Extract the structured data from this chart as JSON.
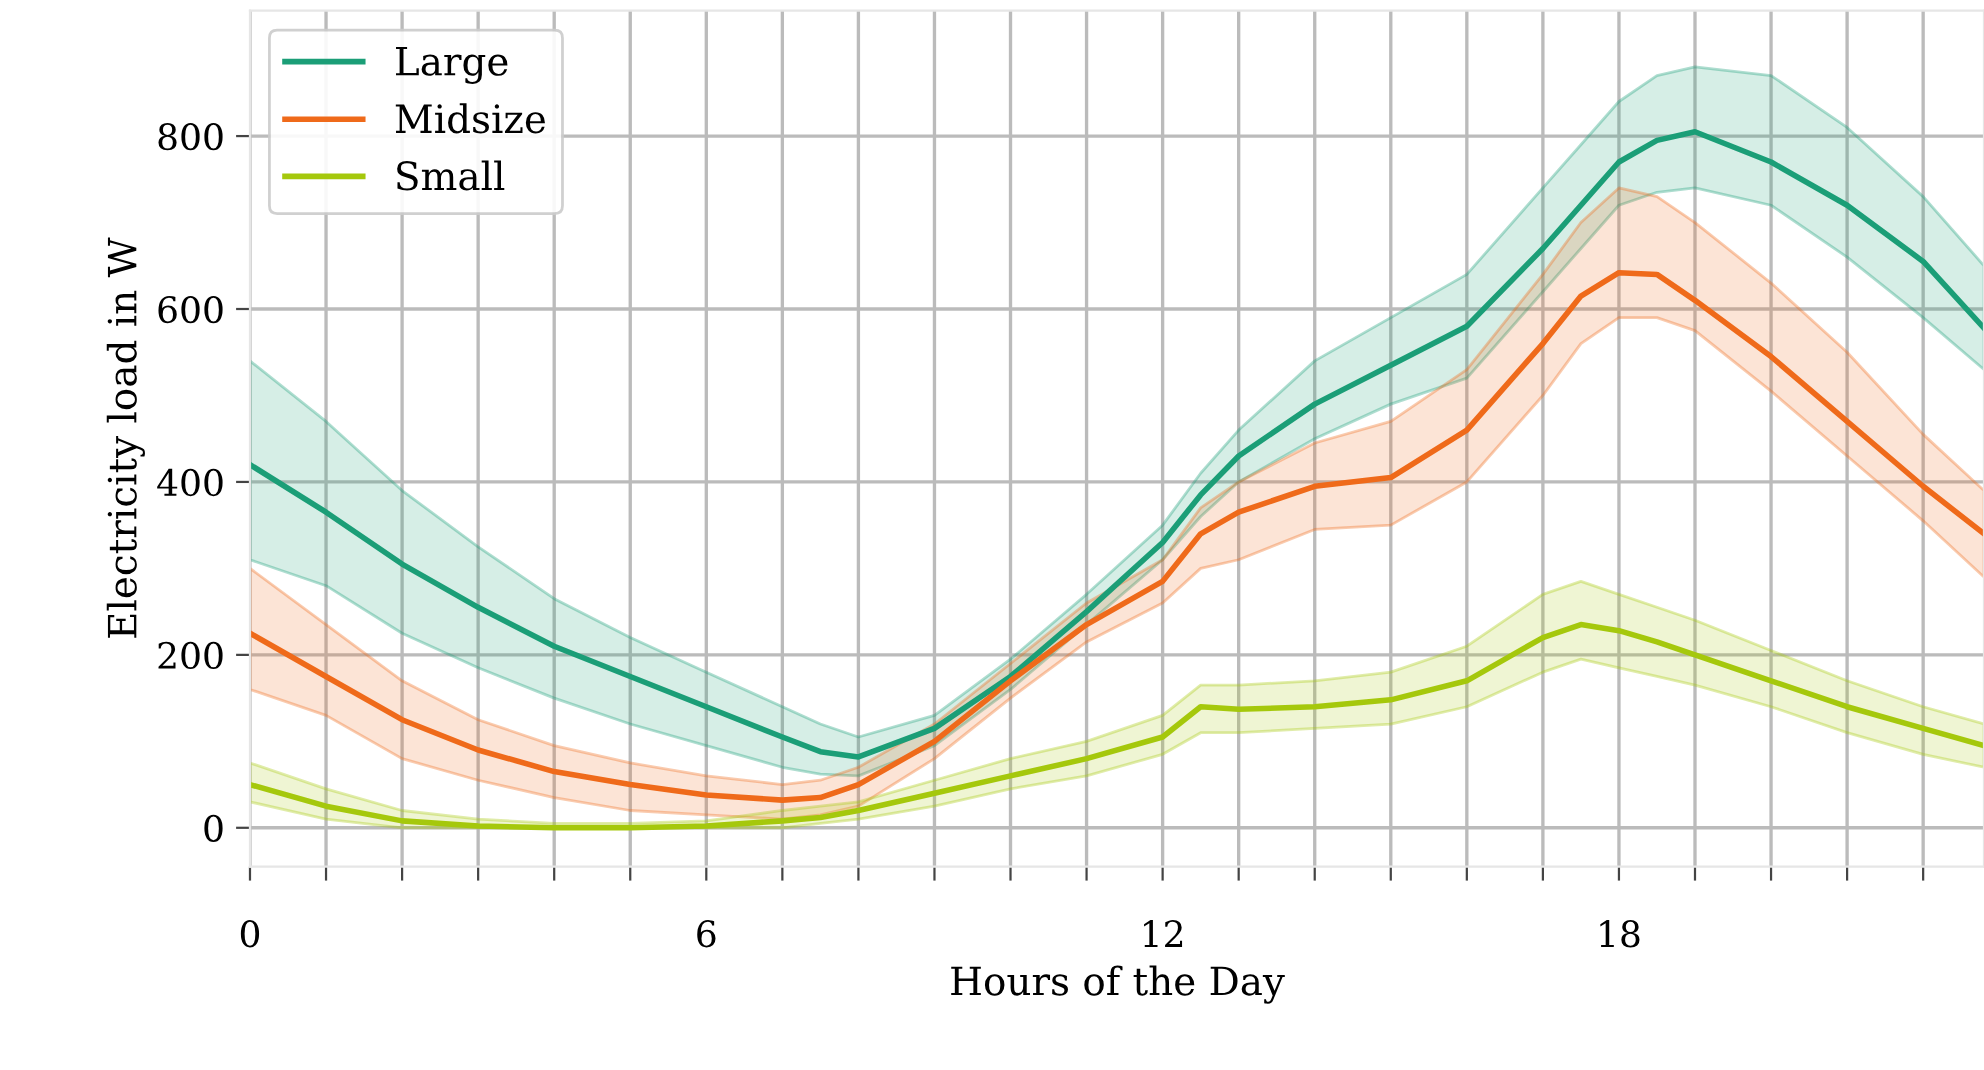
{
  "chart_data": {
    "type": "line",
    "xlabel": "Hours of the Day",
    "ylabel": "Electricity load in W",
    "x": [
      0,
      1,
      2,
      3,
      4,
      5,
      6,
      7,
      7.5,
      8,
      9,
      10,
      11,
      12,
      12.5,
      13,
      14,
      15,
      16,
      17,
      17.5,
      18,
      18.5,
      19,
      20,
      21,
      22,
      22.8
    ],
    "xlim": [
      0,
      22.8
    ],
    "ylim": [
      -45,
      945
    ],
    "xticks": [
      0,
      {
        "value": 1,
        "label": null
      },
      {
        "value": 2,
        "label": null
      },
      {
        "value": 3,
        "label": null
      },
      {
        "value": 4,
        "label": null
      },
      {
        "value": 5,
        "label": null
      },
      6,
      {
        "value": 7,
        "label": null
      },
      {
        "value": 8,
        "label": null
      },
      {
        "value": 9,
        "label": null
      },
      {
        "value": 10,
        "label": null
      },
      {
        "value": 11,
        "label": null
      },
      12,
      {
        "value": 13,
        "label": null
      },
      {
        "value": 14,
        "label": null
      },
      {
        "value": 15,
        "label": null
      },
      {
        "value": 16,
        "label": null
      },
      {
        "value": 17,
        "label": null
      },
      18,
      {
        "value": 19,
        "label": null
      },
      {
        "value": 20,
        "label": null
      },
      {
        "value": 21,
        "label": null
      },
      {
        "value": 22,
        "label": null
      }
    ],
    "yticks": [
      0,
      200,
      400,
      600,
      800
    ],
    "grid": true,
    "legend": "top left",
    "line_style": "solid",
    "marker": "none",
    "series": [
      {
        "name": "Large",
        "color": "#1b9e77",
        "values": [
          420,
          365,
          305,
          255,
          210,
          175,
          140,
          105,
          88,
          82,
          115,
          175,
          250,
          330,
          385,
          430,
          490,
          535,
          580,
          670,
          720,
          770,
          795,
          805,
          770,
          720,
          655,
          578
        ],
        "lower": [
          310,
          280,
          225,
          185,
          150,
          120,
          95,
          70,
          62,
          60,
          95,
          160,
          235,
          310,
          360,
          400,
          450,
          490,
          520,
          620,
          670,
          720,
          735,
          740,
          720,
          660,
          590,
          530
        ],
        "upper": [
          540,
          470,
          390,
          325,
          265,
          220,
          180,
          140,
          120,
          105,
          130,
          195,
          270,
          350,
          410,
          460,
          540,
          590,
          640,
          740,
          790,
          840,
          870,
          880,
          870,
          810,
          730,
          650
        ]
      },
      {
        "name": "Midsize",
        "color": "#ef6a1a",
        "values": [
          225,
          175,
          125,
          90,
          65,
          50,
          38,
          32,
          35,
          50,
          100,
          170,
          235,
          285,
          340,
          365,
          395,
          405,
          460,
          560,
          615,
          642,
          640,
          610,
          545,
          470,
          395,
          340
        ],
        "lower": [
          160,
          130,
          80,
          55,
          35,
          20,
          15,
          10,
          15,
          25,
          80,
          150,
          215,
          260,
          300,
          310,
          345,
          350,
          400,
          500,
          560,
          590,
          590,
          575,
          505,
          430,
          355,
          290
        ],
        "upper": [
          300,
          235,
          170,
          125,
          95,
          75,
          60,
          50,
          55,
          70,
          120,
          190,
          260,
          310,
          370,
          400,
          445,
          470,
          530,
          640,
          700,
          740,
          730,
          700,
          630,
          550,
          455,
          390
        ]
      },
      {
        "name": "Small",
        "color": "#a5c80c",
        "values": [
          50,
          25,
          8,
          2,
          0,
          0,
          2,
          8,
          12,
          20,
          40,
          60,
          80,
          105,
          140,
          137,
          140,
          148,
          170,
          220,
          235,
          228,
          215,
          200,
          170,
          140,
          115,
          95
        ],
        "lower": [
          30,
          10,
          0,
          0,
          0,
          0,
          0,
          0,
          5,
          10,
          25,
          45,
          60,
          85,
          110,
          110,
          115,
          120,
          140,
          180,
          195,
          185,
          175,
          165,
          140,
          110,
          85,
          70
        ],
        "upper": [
          75,
          45,
          20,
          10,
          5,
          5,
          8,
          20,
          25,
          30,
          55,
          80,
          100,
          130,
          165,
          165,
          170,
          180,
          210,
          270,
          285,
          270,
          255,
          240,
          205,
          170,
          140,
          120
        ]
      }
    ]
  }
}
